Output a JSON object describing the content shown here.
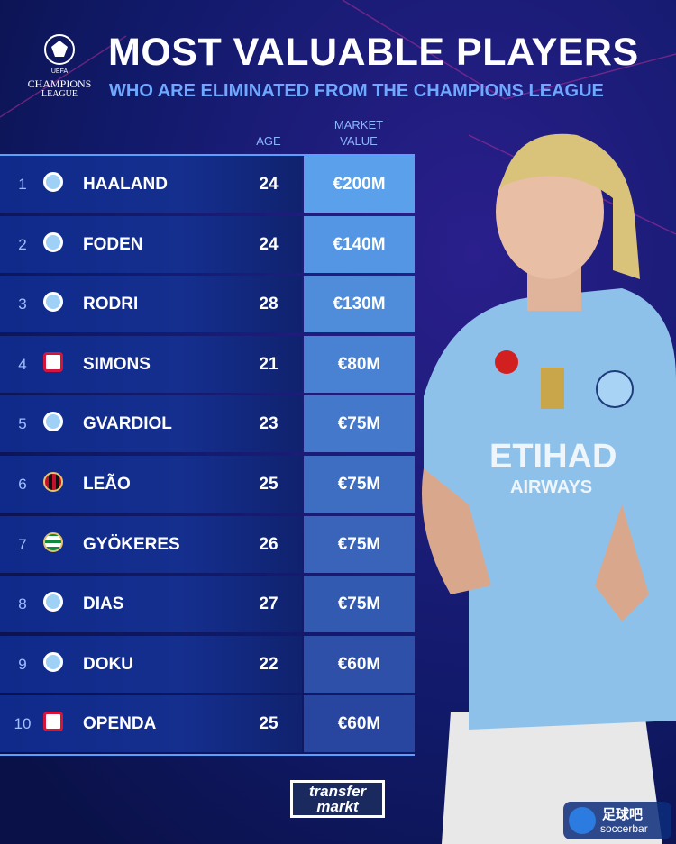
{
  "logo": {
    "top": "UEFA",
    "line1": "CHAMPIONS",
    "line2": "LEAGUE"
  },
  "header": {
    "title": "MOST VALUABLE PLAYERS",
    "subtitle": "WHO ARE ELIMINATED FROM THE CHAMPIONS LEAGUE"
  },
  "table": {
    "columns": {
      "age": "AGE",
      "value": "MARKET VALUE"
    },
    "rows": [
      {
        "rank": 1,
        "name": "HAALAND",
        "age": 24,
        "value": "€200M"
      },
      {
        "rank": 2,
        "name": "FODEN",
        "age": 24,
        "value": "€140M"
      },
      {
        "rank": 3,
        "name": "RODRI",
        "age": 28,
        "value": "€130M"
      },
      {
        "rank": 4,
        "name": "SIMONS",
        "age": 21,
        "value": "€80M"
      },
      {
        "rank": 5,
        "name": "GVARDIOL",
        "age": 23,
        "value": "€75M"
      },
      {
        "rank": 6,
        "name": "LEÃO",
        "age": 25,
        "value": "€75M"
      },
      {
        "rank": 7,
        "name": "GYÖKERES",
        "age": 26,
        "value": "€75M"
      },
      {
        "rank": 8,
        "name": "DIAS",
        "age": 27,
        "value": "€75M"
      },
      {
        "rank": 9,
        "name": "DOKU",
        "age": 22,
        "value": "€60M"
      },
      {
        "rank": 10,
        "name": "OPENDA",
        "age": 25,
        "value": "€60M"
      }
    ]
  },
  "shirt": {
    "sponsor": "ETIHAD",
    "sponsor2": "AIRWAYS"
  },
  "footer": {
    "brand1": "transfer",
    "brand2": "markt",
    "watermark1": "足球吧",
    "watermark2": "soccerbar"
  }
}
